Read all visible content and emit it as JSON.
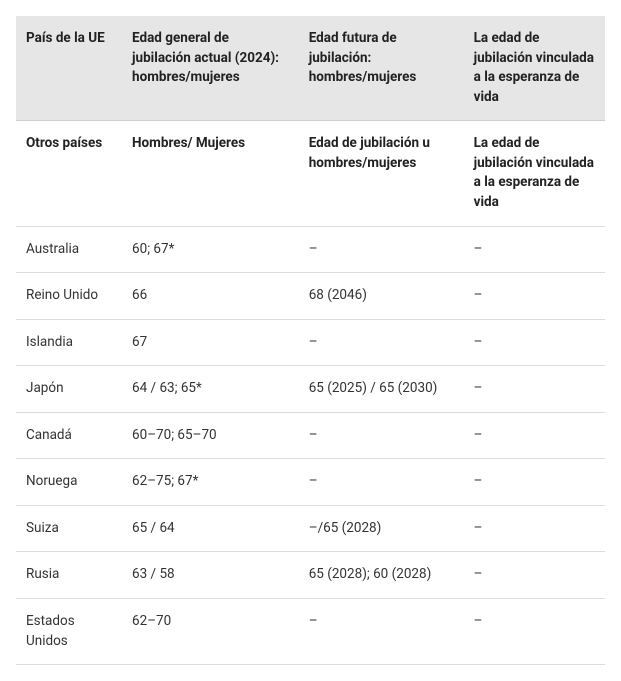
{
  "table": {
    "header": {
      "col1": "País de la UE",
      "col2": "Edad general de jubilación actual (2024): hombres/mujeres",
      "col3": "Edad futura de jubilación: hombres/mujeres",
      "col4": "La edad de jubilación vinculada a la esperanza de vida"
    },
    "subheader": {
      "col1": "Otros países",
      "col2": "Hombres/ Mujeres",
      "col3": "Edad de jubilación u hombres/mujeres",
      "col4": "La edad de jubilación vinculada a la esperanza de vida"
    },
    "rows": [
      {
        "country": "Australia",
        "current": "60; 67*",
        "future": "–",
        "linked": "–"
      },
      {
        "country": "Reino Unido",
        "current": "66",
        "future": "68 (2046)",
        "linked": "–"
      },
      {
        "country": "Islandia",
        "current": "67",
        "future": "–",
        "linked": "–"
      },
      {
        "country": "Japón",
        "current": "64 / 63; 65*",
        "future": "65 (2025) / 65 (2030)",
        "linked": "–"
      },
      {
        "country": "Canadá",
        "current": "60–70; 65–70",
        "future": "–",
        "linked": "–"
      },
      {
        "country": "Noruega",
        "current": "62–75; 67*",
        "future": "–",
        "linked": "–"
      },
      {
        "country": "Suiza",
        "current": "65 / 64",
        "future": "–/65 (2028)",
        "linked": "–"
      },
      {
        "country": "Rusia",
        "current": "63 / 58",
        "future": "65 (2028); 60 (2028)",
        "linked": "–"
      },
      {
        "country": "Estados Unidos",
        "current": "62–70",
        "future": "–",
        "linked": "–"
      }
    ]
  }
}
